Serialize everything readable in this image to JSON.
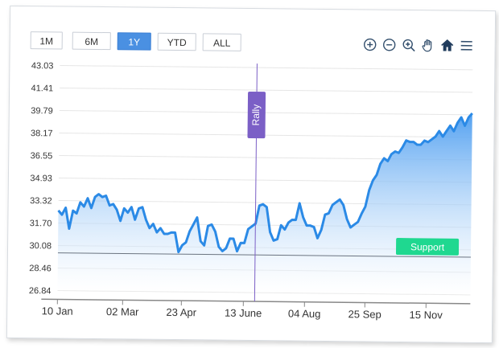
{
  "toolbar": {
    "ranges": [
      "1M",
      "6M",
      "1Y",
      "YTD",
      "ALL"
    ],
    "active_range": "1Y",
    "tools": [
      "zoom-in-icon",
      "zoom-out-icon",
      "zoom-select-icon",
      "pan-hand-icon",
      "home-icon",
      "menu-icon"
    ]
  },
  "colors": {
    "line": "#2b8ae6",
    "area_top": "#4a9cf0",
    "area_bottom": "#ffffff",
    "annotation_rally": "#7b5fc6",
    "support": "#1fd890",
    "grid": "#e6e6e6"
  },
  "chart_data": {
    "type": "area",
    "y_ticks": [
      "43.03",
      "41.41",
      "39.79",
      "38.17",
      "36.55",
      "34.93",
      "33.32",
      "31.70",
      "30.08",
      "28.46",
      "26.84"
    ],
    "x_ticks": [
      "10 Jan",
      "02 Mar",
      "23 Apr",
      "13 June",
      "04 Aug",
      "25 Sep",
      "15 Nov"
    ],
    "ylim": [
      26.84,
      43.03
    ],
    "grid": true,
    "series": [
      {
        "values": [
          32.6,
          32.3,
          32.8,
          31.3,
          32.6,
          32.4,
          33.2,
          32.9,
          33.5,
          32.8,
          33.6,
          33.8,
          33.6,
          33.7,
          33.0,
          33.1,
          32.7,
          31.9,
          32.8,
          32.5,
          32.9,
          32.0,
          32.8,
          32.9,
          32.0,
          31.4,
          31.7,
          31.1,
          31.4,
          31.0,
          31.0,
          31.1,
          31.1,
          29.7,
          30.2,
          30.4,
          31.2,
          31.7,
          32.2,
          30.5,
          30.2,
          31.6,
          31.7,
          31.2,
          30.1,
          29.8,
          30.0,
          30.7,
          30.7,
          29.8,
          30.4,
          30.4,
          31.4,
          31.6,
          31.8,
          33.1,
          33.2,
          33.0,
          31.2,
          30.6,
          30.7,
          31.7,
          31.4,
          31.9,
          32.1,
          32.1,
          33.3,
          32.3,
          31.7,
          31.7,
          31.6,
          30.8,
          31.4,
          32.5,
          32.6,
          33.2,
          33.4,
          33.6,
          33.2,
          32.2,
          31.6,
          31.8,
          32.0,
          32.6,
          33.1,
          34.3,
          35.0,
          35.4,
          36.2,
          36.6,
          36.4,
          36.9,
          37.1,
          37.0,
          37.4,
          37.9,
          37.8,
          37.8,
          37.6,
          37.6,
          37.9,
          37.8,
          38.0,
          38.2,
          38.6,
          38.2,
          38.6,
          39.0,
          38.6,
          39.2,
          39.6,
          39.0,
          39.6,
          39.9
        ]
      }
    ],
    "annotations": [
      {
        "label": "Rally",
        "x": "13 June"
      },
      {
        "label": "Support",
        "y": 29.55
      }
    ]
  }
}
